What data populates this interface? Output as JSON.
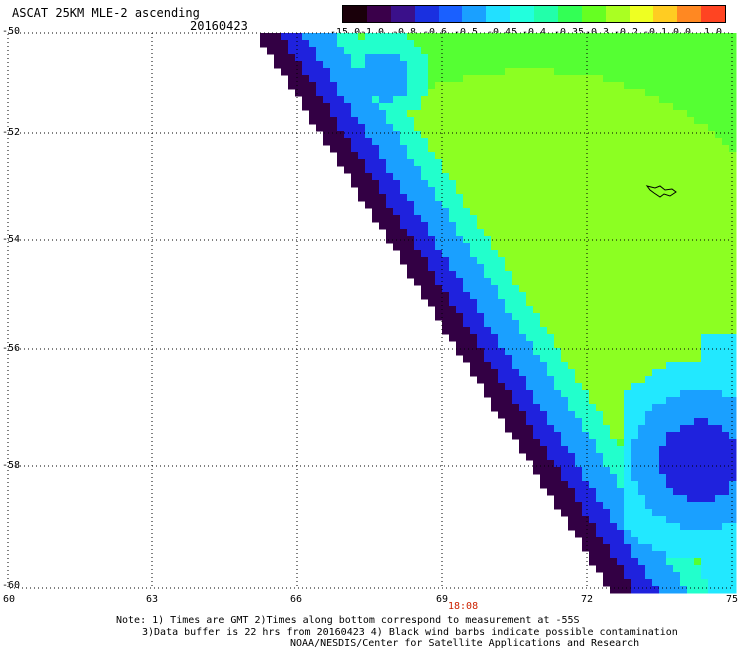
{
  "header": {
    "title": "ASCAT 25KM MLE-2 ascending",
    "date": "20160423"
  },
  "colorbar": {
    "labels": [
      "-15.0",
      "-1.0",
      "-0.8",
      "-0.6",
      "-0.5",
      "-0.45",
      "-0.4",
      "-0.35",
      "-0.3",
      "-0.2",
      "-0.1",
      "0.0",
      "1.0"
    ],
    "colors": [
      "#2a0010",
      "#3a0a5e",
      "#3a1a9a",
      "#2244dd",
      "#1a7aff",
      "#22c8ff",
      "#22ffee",
      "#22ffaa",
      "#33ff44",
      "#88ff22",
      "#ffee22",
      "#ff9922",
      "#ff3322"
    ]
  },
  "axes": {
    "lat_labels": [
      "-50",
      "-52",
      "-54",
      "-56",
      "-58",
      "-60"
    ],
    "lon_labels": [
      "60",
      "63",
      "66",
      "69",
      "72",
      "75"
    ],
    "time_label": "18:08"
  },
  "footer": {
    "line1": "Note: 1) Times are GMT 2)Times along bottom correspond to measurement at -55S",
    "line2": "3)Data buffer is 22 hrs from 20160423 4) Black wind barbs indicate possible contamination",
    "line3": "NOAA/NESDIS/Center for Satellite Applications and Research"
  }
}
